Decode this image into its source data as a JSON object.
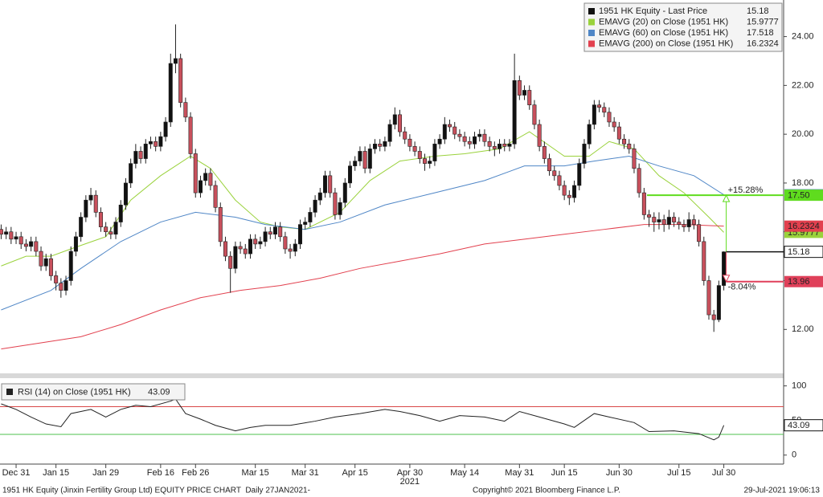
{
  "chart_data": [
    {
      "type": "candlestick",
      "legend": "top-right",
      "xlim": [
        -0.23,
        157
      ],
      "ylim": [
        10.2,
        25.5
      ],
      "yticks": [
        {
          "value": 12,
          "label": "12.00"
        },
        {
          "value": 14,
          "label": "14.00"
        },
        {
          "value": 16,
          "label": "16.00"
        },
        {
          "value": 18,
          "label": "18.00"
        },
        {
          "value": 20,
          "label": "20.00"
        },
        {
          "value": 22,
          "label": "22.00"
        },
        {
          "value": 24,
          "label": "24.00"
        }
      ],
      "series": [
        {
          "name": "1951 HK Equity - Last Price",
          "color": "#111111",
          "down_color": "#c8505c",
          "last": 15.18,
          "open": [
            16.1,
            15.9,
            16.0,
            15.7,
            15.8,
            15.5,
            15.4,
            15.6,
            15.2,
            14.6,
            14.9,
            14.2,
            13.9,
            13.6,
            14.0,
            15.2,
            15.8,
            16.6,
            17.3,
            17.5,
            16.8,
            16.2,
            16.0,
            15.9,
            16.4,
            17.1,
            18.0,
            18.8,
            19.3,
            19.0,
            19.6,
            19.7,
            19.5,
            19.9,
            20.5,
            22.9,
            23.1,
            21.3,
            20.7,
            19.2,
            17.6,
            18.1,
            18.4,
            17.9,
            17.0,
            15.6,
            15.0,
            14.5,
            15.4,
            15.3,
            15.1,
            15.7,
            15.5,
            15.6,
            16.0,
            15.9,
            16.2,
            15.8,
            15.3,
            15.2,
            15.5,
            16.3,
            16.4,
            16.8,
            17.3,
            17.6,
            18.3,
            17.6,
            16.7,
            17.2,
            18.0,
            18.7,
            18.9,
            19.3,
            18.6,
            19.4,
            19.6,
            19.5,
            19.7,
            20.4,
            20.8,
            20.1,
            19.8,
            19.5,
            19.3,
            19.0,
            18.8,
            18.9,
            19.6,
            19.8,
            20.4,
            20.3,
            20.0,
            19.9,
            19.7,
            19.6,
            19.9,
            20.0,
            19.7,
            19.5,
            19.4,
            19.6,
            19.5,
            19.6,
            22.2,
            21.6,
            21.8,
            21.2,
            20.4,
            19.5,
            19.0,
            18.5,
            18.3,
            17.9,
            17.5,
            17.4,
            17.9,
            18.8,
            19.6,
            20.4,
            21.2,
            21.1,
            20.9,
            20.5,
            20.3,
            19.8,
            19.6,
            19.4,
            18.6,
            17.6,
            16.7,
            16.6,
            16.4,
            16.5,
            16.3,
            16.6,
            16.4,
            16.3,
            16.2,
            16.5,
            16.3,
            15.6,
            14.0,
            12.6,
            12.4,
            13.8
          ],
          "high": [
            16.3,
            16.2,
            16.2,
            16.0,
            16.0,
            15.7,
            15.8,
            15.8,
            15.4,
            15.1,
            15.1,
            14.4,
            14.1,
            14.2,
            15.4,
            16.0,
            16.8,
            17.5,
            17.8,
            17.7,
            17.0,
            16.4,
            16.2,
            16.6,
            17.3,
            18.2,
            19.0,
            19.6,
            19.5,
            19.8,
            19.9,
            19.9,
            20.1,
            20.7,
            23.3,
            24.5,
            23.3,
            21.5,
            20.9,
            19.4,
            18.3,
            18.6,
            18.6,
            18.1,
            17.2,
            15.8,
            15.2,
            15.6,
            15.6,
            15.5,
            15.9,
            15.9,
            15.8,
            16.2,
            16.2,
            16.4,
            16.4,
            16.0,
            15.5,
            15.7,
            16.5,
            16.6,
            17.0,
            17.5,
            17.8,
            18.5,
            18.5,
            17.8,
            17.4,
            18.2,
            18.9,
            19.1,
            19.5,
            19.5,
            19.6,
            19.8,
            19.8,
            19.9,
            20.6,
            21.1,
            21.0,
            20.3,
            20.0,
            19.7,
            19.5,
            19.2,
            19.1,
            19.8,
            20.0,
            20.7,
            20.6,
            20.5,
            20.2,
            20.1,
            19.9,
            20.1,
            20.2,
            20.2,
            19.9,
            19.7,
            19.8,
            19.8,
            19.8,
            23.3,
            22.4,
            22.0,
            22.0,
            21.4,
            20.6,
            19.7,
            19.2,
            18.7,
            18.5,
            18.1,
            17.7,
            18.1,
            19.0,
            19.8,
            20.6,
            21.4,
            21.4,
            21.3,
            21.1,
            20.7,
            20.5,
            20.0,
            19.8,
            19.6,
            18.8,
            17.8,
            16.9,
            16.8,
            16.8,
            16.7,
            16.9,
            16.8,
            16.6,
            16.5,
            16.8,
            16.7,
            16.5,
            15.8,
            14.2,
            12.8,
            14.0,
            15.2
          ],
          "low": [
            15.7,
            15.7,
            15.5,
            15.5,
            15.3,
            15.2,
            15.2,
            15.0,
            14.4,
            14.4,
            14.0,
            13.6,
            13.3,
            13.4,
            13.8,
            15.0,
            15.6,
            16.4,
            17.1,
            16.6,
            16.0,
            15.8,
            15.7,
            15.7,
            16.2,
            16.9,
            17.8,
            18.6,
            18.8,
            18.8,
            19.4,
            19.3,
            19.3,
            19.7,
            20.3,
            22.5,
            21.1,
            20.5,
            19.0,
            17.4,
            17.4,
            17.9,
            17.7,
            16.8,
            15.4,
            14.8,
            13.5,
            14.3,
            15.1,
            14.9,
            14.9,
            15.3,
            15.3,
            15.4,
            15.7,
            15.7,
            15.6,
            15.1,
            14.9,
            15.0,
            15.3,
            16.1,
            16.2,
            16.6,
            17.1,
            17.4,
            17.4,
            16.5,
            16.5,
            17.0,
            17.8,
            18.5,
            18.7,
            18.4,
            18.4,
            19.2,
            19.3,
            19.3,
            19.5,
            20.2,
            19.9,
            19.6,
            19.3,
            19.1,
            18.8,
            18.5,
            18.6,
            18.7,
            19.4,
            19.6,
            20.1,
            19.8,
            19.7,
            19.5,
            19.4,
            19.4,
            19.7,
            19.5,
            19.3,
            19.1,
            19.2,
            19.3,
            19.3,
            19.4,
            21.4,
            21.4,
            21.0,
            20.2,
            19.3,
            18.8,
            18.3,
            18.1,
            17.7,
            17.3,
            17.1,
            17.2,
            17.7,
            18.6,
            19.4,
            20.2,
            20.9,
            20.7,
            20.3,
            20.1,
            19.6,
            19.4,
            19.2,
            18.4,
            17.4,
            16.5,
            16.2,
            16.0,
            16.1,
            16.0,
            16.1,
            16.2,
            16.1,
            16.0,
            16.0,
            16.1,
            15.4,
            13.8,
            12.4,
            11.9,
            12.3,
            13.6
          ],
          "close": [
            15.9,
            16.0,
            15.7,
            15.8,
            15.5,
            15.4,
            15.6,
            15.2,
            14.6,
            14.9,
            14.2,
            13.9,
            13.6,
            14.0,
            15.2,
            15.8,
            16.6,
            17.3,
            17.5,
            16.8,
            16.2,
            16.0,
            15.9,
            16.4,
            17.1,
            18.0,
            18.8,
            19.3,
            19.0,
            19.6,
            19.7,
            19.5,
            19.9,
            20.5,
            22.9,
            23.1,
            21.3,
            20.7,
            19.2,
            17.6,
            18.1,
            18.4,
            17.9,
            17.0,
            15.6,
            15.0,
            14.5,
            15.4,
            15.3,
            15.1,
            15.7,
            15.5,
            15.6,
            16.0,
            15.9,
            16.2,
            15.8,
            15.3,
            15.2,
            15.5,
            16.3,
            16.4,
            16.8,
            17.3,
            17.6,
            18.3,
            17.6,
            16.7,
            17.2,
            18.0,
            18.7,
            18.9,
            19.3,
            18.6,
            19.4,
            19.6,
            19.5,
            19.7,
            20.4,
            20.8,
            20.1,
            19.8,
            19.5,
            19.3,
            19.0,
            18.8,
            18.9,
            19.6,
            19.8,
            20.4,
            20.3,
            20.0,
            19.9,
            19.7,
            19.6,
            19.9,
            20.0,
            19.7,
            19.5,
            19.4,
            19.6,
            19.5,
            19.6,
            22.2,
            21.6,
            21.8,
            21.2,
            20.4,
            19.5,
            19.0,
            18.5,
            18.3,
            17.9,
            17.5,
            17.4,
            17.9,
            18.8,
            19.6,
            20.4,
            21.2,
            21.1,
            20.9,
            20.5,
            20.3,
            19.8,
            19.6,
            19.4,
            18.6,
            17.6,
            16.7,
            16.6,
            16.4,
            16.5,
            16.3,
            16.6,
            16.4,
            16.3,
            16.2,
            16.5,
            16.3,
            15.6,
            14.0,
            12.6,
            12.4,
            13.8,
            15.18
          ]
        }
      ],
      "lines": [
        {
          "name": "EMAVG (20) on Close (1951 HK)",
          "color": "#9ad23c",
          "last": 15.9777,
          "x": [
            0,
            5,
            10,
            14,
            21,
            26,
            32,
            38,
            42,
            47,
            52,
            56,
            61,
            68,
            74,
            80,
            87,
            93,
            100,
            106,
            113,
            118,
            122,
            127,
            132,
            137,
            142,
            145
          ],
          "values": [
            14.6,
            15.0,
            15.0,
            15.3,
            15.8,
            17.3,
            18.3,
            19.1,
            18.6,
            17.3,
            16.4,
            16.2,
            16.1,
            16.8,
            18.1,
            18.9,
            19.1,
            19.2,
            19.4,
            20.1,
            19.1,
            19.1,
            19.7,
            19.4,
            18.3,
            17.6,
            16.6,
            15.9777
          ]
        },
        {
          "name": "EMAVG (60) on Close (1951 HK)",
          "color": "#4f86c6",
          "last": 17.518,
          "x": [
            0,
            10,
            16,
            24,
            32,
            39,
            47,
            53,
            61,
            68,
            77,
            87,
            97,
            105,
            113,
            119,
            126,
            132,
            139,
            145
          ],
          "values": [
            12.8,
            13.6,
            14.5,
            15.6,
            16.4,
            16.8,
            16.6,
            16.3,
            16.1,
            16.4,
            17.1,
            17.6,
            18.1,
            18.7,
            18.7,
            18.9,
            19.1,
            18.7,
            18.3,
            17.518
          ]
        },
        {
          "name": "EMAVG (200) on Close (1951 HK)",
          "color": "#e2404e",
          "last": 16.2324,
          "x": [
            0,
            16,
            24,
            32,
            40,
            48,
            56,
            64,
            72,
            80,
            88,
            97,
            105,
            113,
            121,
            129,
            137,
            145
          ],
          "values": [
            11.2,
            11.7,
            12.2,
            12.8,
            13.3,
            13.6,
            13.8,
            14.1,
            14.5,
            14.8,
            15.1,
            15.5,
            15.7,
            15.9,
            16.1,
            16.3,
            16.3,
            16.2324
          ]
        }
      ],
      "annotations": [
        {
          "level": {
            "value": 17.5,
            "label": "17.50"
          },
          "change": "+15.28%",
          "color": "#5fdc1e"
        },
        {
          "level": 13.96,
          "change": "-8.04%",
          "color": "#e0405a"
        }
      ]
    },
    {
      "type": "line",
      "legend": "top-left",
      "xlim": [
        -0.23,
        157
      ],
      "ylim": [
        -13,
        110
      ],
      "yticks": [
        0,
        50,
        100
      ],
      "levels": [
        {
          "value": 70,
          "color": "#d84848"
        },
        {
          "value": 30,
          "color": "#4cc04c"
        }
      ],
      "xticks": [
        {
          "value": 3,
          "label": "Dec 31"
        },
        {
          "value": 11,
          "label": "Jan 15"
        },
        {
          "value": 21,
          "label": "Jan 29"
        },
        {
          "value": 32,
          "label": "Feb 16"
        },
        {
          "value": 39,
          "label": "Feb 26"
        },
        {
          "value": 51,
          "label": "Mar 15"
        },
        {
          "value": 61,
          "label": "Mar 31"
        },
        {
          "value": 71,
          "label": "Apr 15"
        },
        {
          "value": 82,
          "label": "Apr 30"
        },
        {
          "value": 93,
          "label": "May 14"
        },
        {
          "value": 104,
          "label": "May 31"
        },
        {
          "value": 113,
          "label": "Jun 15"
        },
        {
          "value": 124,
          "label": "Jun 30"
        },
        {
          "value": 136,
          "label": "Jul 15"
        },
        {
          "value": 145,
          "label": "Jul 30"
        }
      ],
      "year_label": {
        "value": 82,
        "label": "2021"
      },
      "series": [
        {
          "name": "RSI (14) on Close (1951 HK)",
          "color": "#222222",
          "last": 43.09,
          "x": [
            0,
            3,
            6,
            9,
            12,
            14,
            18,
            21,
            24,
            27,
            30,
            34,
            35,
            37,
            40,
            43,
            47,
            50,
            53,
            58,
            63,
            67,
            72,
            77,
            80,
            84,
            88,
            92,
            97,
            101,
            104,
            108,
            113,
            115,
            119,
            122,
            127,
            130,
            135,
            140,
            143,
            144,
            145
          ],
          "values": [
            74,
            66,
            55,
            45,
            41,
            60,
            66,
            55,
            66,
            72,
            70,
            78,
            81,
            60,
            52,
            43,
            35,
            40,
            43,
            43,
            49,
            55,
            60,
            66,
            63,
            57,
            49,
            57,
            55,
            49,
            63,
            55,
            45,
            40,
            60,
            55,
            47,
            34,
            35,
            31,
            22,
            26,
            43.09
          ]
        }
      ]
    }
  ],
  "footer": {
    "left": "1951 HK Equity (Jinxin Fertility Group Ltd) EQUITY PRICE CHART  Daily 27JAN2021-",
    "center": "Copyright© 2021 Bloomberg Finance L.P.",
    "right": "29-Jul-2021 19:06:13"
  }
}
